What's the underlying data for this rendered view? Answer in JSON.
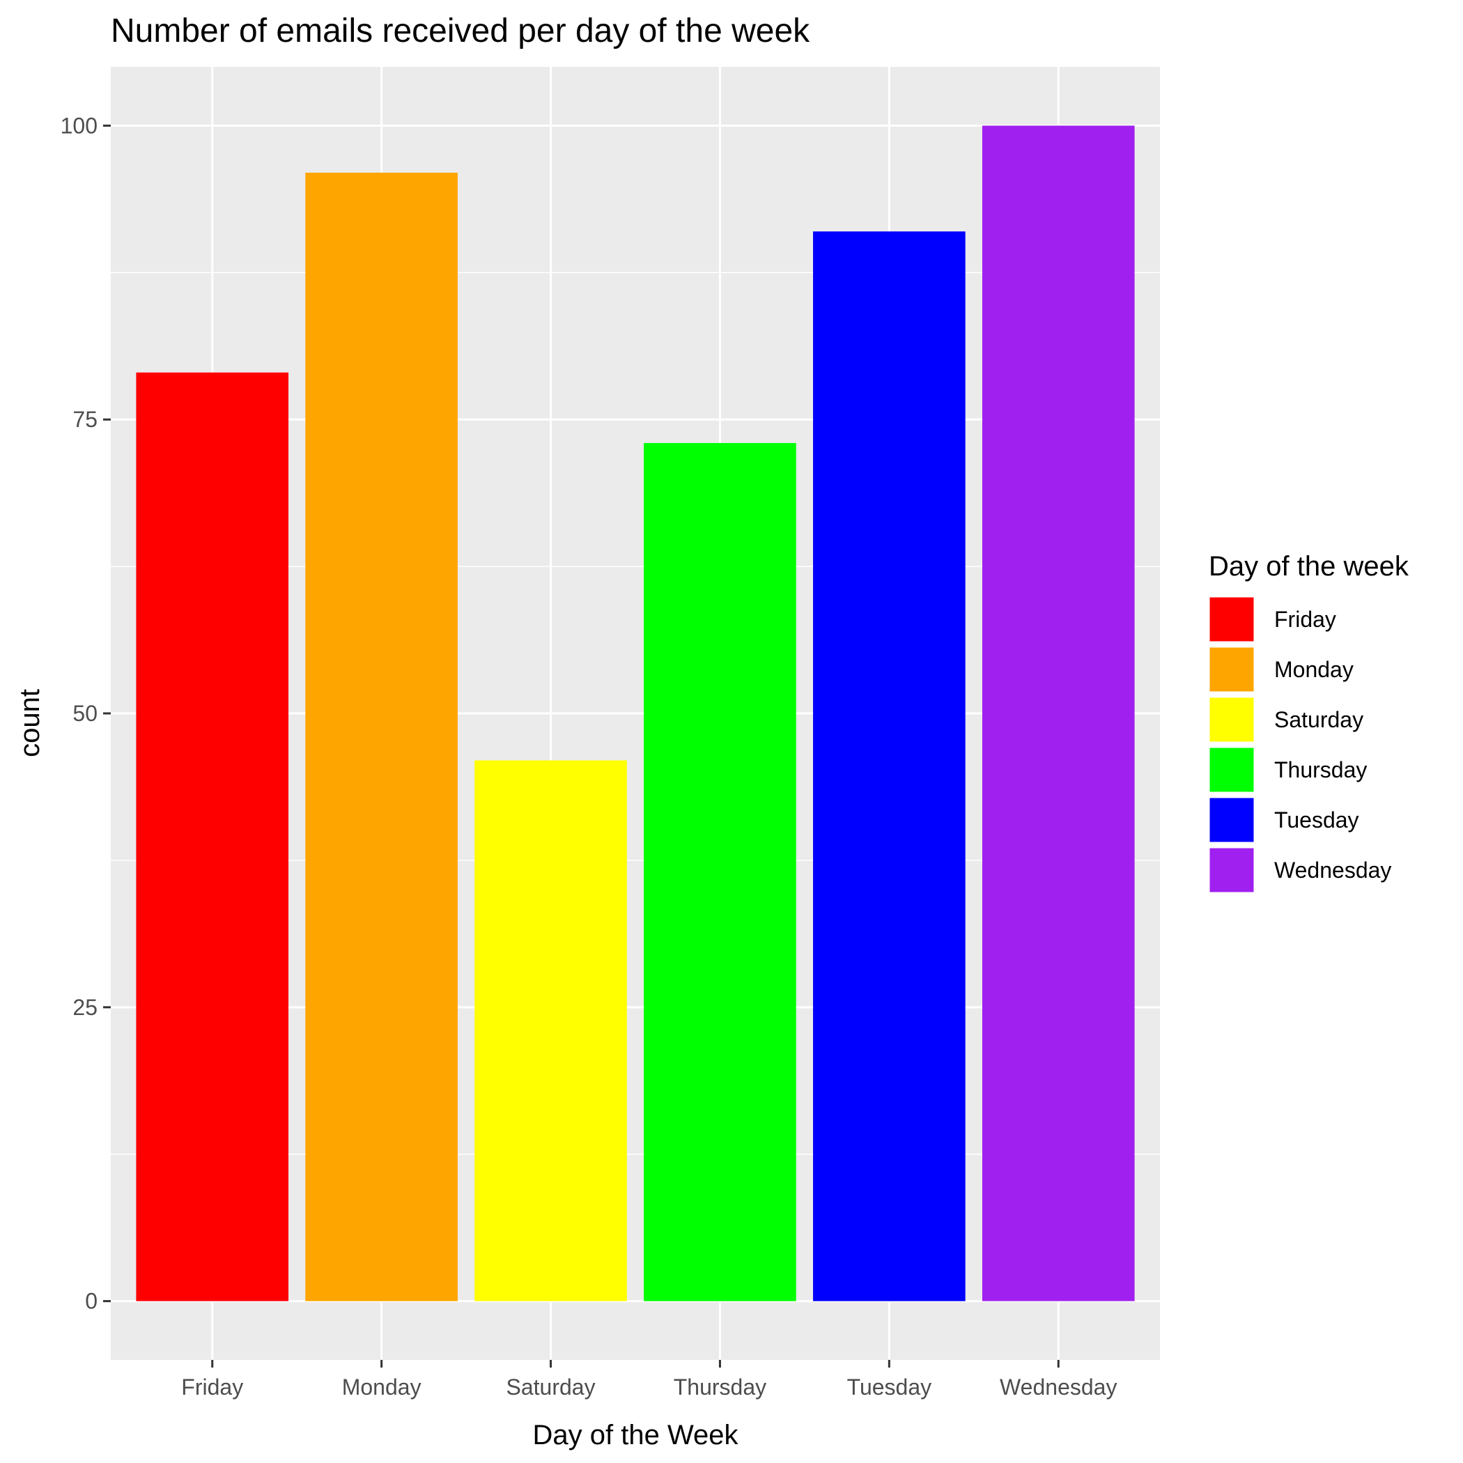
{
  "chart_data": {
    "type": "bar",
    "title": "Number of emails received per day of the week",
    "xlabel": "Day of the Week",
    "ylabel": "count",
    "categories": [
      "Friday",
      "Monday",
      "Saturday",
      "Thursday",
      "Tuesday",
      "Wednesday"
    ],
    "values": [
      79,
      96,
      46,
      73,
      91,
      100
    ],
    "colors": [
      "#FF0000",
      "#FFA500",
      "#FFFF00",
      "#00FF00",
      "#0000FF",
      "#A020F0"
    ],
    "ylim": [
      -5,
      105
    ],
    "yticks": [
      0,
      25,
      50,
      75,
      100
    ],
    "ytick_labels": [
      "0",
      "25",
      "50",
      "75",
      "100"
    ],
    "grid": true,
    "panel_background": "#EBEBEB",
    "legend": {
      "title": "Day of the week",
      "placement": "right",
      "entries": [
        "Friday",
        "Monday",
        "Saturday",
        "Thursday",
        "Tuesday",
        "Wednesday"
      ]
    }
  }
}
